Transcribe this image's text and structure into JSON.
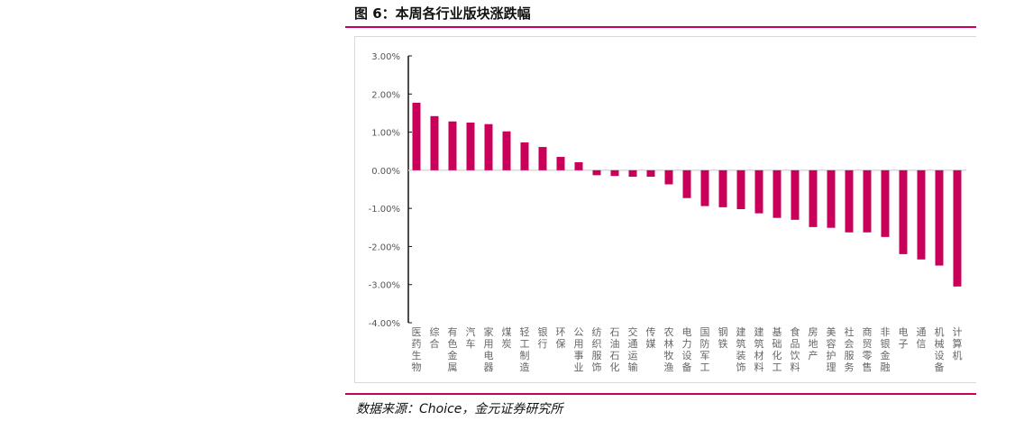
{
  "title": "图 6：本周各行业版块涨跌幅",
  "source": "数据来源：Choice，金元证券研究所",
  "chart_data": {
    "type": "bar",
    "title": "",
    "xlabel": "",
    "ylabel": "",
    "ylim": [
      -4,
      3
    ],
    "yticks": [
      "3.00%",
      "2.00%",
      "1.00%",
      "0.00%",
      "-1.00%",
      "-2.00%",
      "-3.00%",
      "-4.00%"
    ],
    "color": "#c8005a",
    "categories": [
      "医药生物",
      "综合",
      "有色金属",
      "汽车",
      "家用电器",
      "煤炭",
      "轻工制造",
      "银行",
      "环保",
      "公用事业",
      "纺织服饰",
      "石油石化",
      "交通运输",
      "传媒",
      "农林牧渔",
      "电力设备",
      "国防军工",
      "钢铁",
      "建筑装饰",
      "建筑材料",
      "基础化工",
      "食品饮料",
      "房地产",
      "美容护理",
      "社会服务",
      "商贸零售",
      "非银金融",
      "电子",
      "通信",
      "机械设备",
      "计算机"
    ],
    "values": [
      1.77,
      1.42,
      1.28,
      1.25,
      1.21,
      1.02,
      0.73,
      0.61,
      0.35,
      0.21,
      -0.13,
      -0.15,
      -0.17,
      -0.17,
      -0.37,
      -0.73,
      -0.94,
      -0.97,
      -1.02,
      -1.13,
      -1.25,
      -1.3,
      -1.49,
      -1.51,
      -1.63,
      -1.63,
      -1.75,
      -2.2,
      -2.34,
      -2.5,
      -3.05
    ]
  }
}
